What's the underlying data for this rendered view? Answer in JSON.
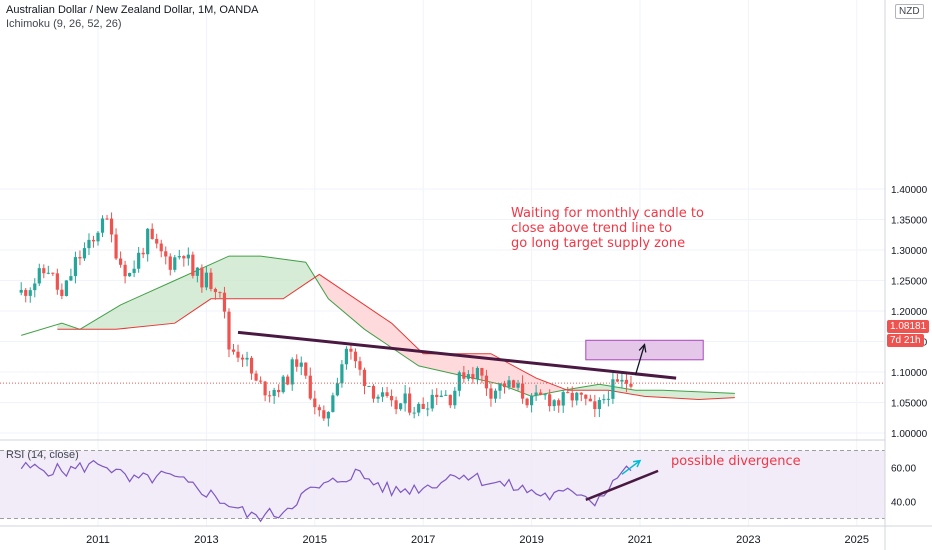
{
  "header": {
    "title": "Australian Dollar / New Zealand Dollar, 1M, OANDA",
    "indicator": "Ichimoku (9, 26, 52, 26)",
    "currency": "NZD"
  },
  "price_axis": {
    "ticks": [
      "1.40000",
      "1.35000",
      "1.30000",
      "1.25000",
      "1.20000",
      "1.15000",
      "1.10000",
      "1.05000",
      "1.00000"
    ],
    "last_price": "1.08181",
    "countdown": "7d 21h"
  },
  "rsi_panel": {
    "title": "RSI (14, close)",
    "ticks": [
      "60.00",
      "40.00"
    ]
  },
  "time_axis": {
    "labels": [
      "2011",
      "2013",
      "2015",
      "2017",
      "2019",
      "2021",
      "2023",
      "2025"
    ]
  },
  "annotations": {
    "main_note_lines": [
      "Waiting for monthly candle to",
      "close above trend line to",
      "go long target supply zone"
    ],
    "rsi_note": "possible divergence"
  },
  "colors": {
    "up_candle": "#26a69a",
    "down_candle": "#ef5350",
    "cloud_bull": "#c8e6c9",
    "cloud_bear": "#ffcdd2",
    "trendline": "#4a1942",
    "supply_zone": "#e1bee7",
    "rsi_line": "#7e57c2",
    "note_text": "#f23645"
  },
  "chart_data": [
    {
      "type": "candlestick",
      "title": "Australian Dollar / New Zealand Dollar, 1M, OANDA",
      "x_range": [
        "2009-07",
        "2025-06"
      ],
      "ylim": [
        0.96,
        1.42
      ],
      "grid": true,
      "anchor_points": [
        {
          "date": "2009-08",
          "close": 1.23
        },
        {
          "date": "2010-02",
          "close": 1.27
        },
        {
          "date": "2010-05",
          "close": 1.22
        },
        {
          "date": "2010-08",
          "close": 1.28
        },
        {
          "date": "2010-10",
          "close": 1.3
        },
        {
          "date": "2010-12",
          "close": 1.31
        },
        {
          "date": "2011-02",
          "close": 1.36
        },
        {
          "date": "2011-04",
          "close": 1.32
        },
        {
          "date": "2011-06",
          "close": 1.28
        },
        {
          "date": "2011-08",
          "close": 1.26
        },
        {
          "date": "2011-10",
          "close": 1.29
        },
        {
          "date": "2011-12",
          "close": 1.32
        },
        {
          "date": "2012-02",
          "close": 1.3
        },
        {
          "date": "2012-05",
          "close": 1.28
        },
        {
          "date": "2012-08",
          "close": 1.3
        },
        {
          "date": "2012-10",
          "close": 1.26
        },
        {
          "date": "2013-01",
          "close": 1.25
        },
        {
          "date": "2013-04",
          "close": 1.24
        },
        {
          "date": "2013-06",
          "close": 1.14
        },
        {
          "date": "2013-09",
          "close": 1.13
        },
        {
          "date": "2013-12",
          "close": 1.08
        },
        {
          "date": "2014-03",
          "close": 1.07
        },
        {
          "date": "2014-06",
          "close": 1.08
        },
        {
          "date": "2014-09",
          "close": 1.12
        },
        {
          "date": "2014-12",
          "close": 1.07
        },
        {
          "date": "2015-03",
          "close": 1.01
        },
        {
          "date": "2015-05",
          "close": 1.07
        },
        {
          "date": "2015-08",
          "close": 1.14
        },
        {
          "date": "2015-11",
          "close": 1.1
        },
        {
          "date": "2016-02",
          "close": 1.07
        },
        {
          "date": "2016-06",
          "close": 1.04
        },
        {
          "date": "2016-09",
          "close": 1.05
        },
        {
          "date": "2016-12",
          "close": 1.04
        },
        {
          "date": "2017-04",
          "close": 1.07
        },
        {
          "date": "2017-07",
          "close": 1.06
        },
        {
          "date": "2017-10",
          "close": 1.1
        },
        {
          "date": "2018-01",
          "close": 1.1
        },
        {
          "date": "2018-04",
          "close": 1.07
        },
        {
          "date": "2018-07",
          "close": 1.08
        },
        {
          "date": "2018-10",
          "close": 1.07
        },
        {
          "date": "2019-01",
          "close": 1.05
        },
        {
          "date": "2019-04",
          "close": 1.06
        },
        {
          "date": "2019-07",
          "close": 1.05
        },
        {
          "date": "2019-10",
          "close": 1.06
        },
        {
          "date": "2020-01",
          "close": 1.05
        },
        {
          "date": "2020-03",
          "close": 1.03
        },
        {
          "date": "2020-06",
          "close": 1.07
        },
        {
          "date": "2020-09",
          "close": 1.08
        },
        {
          "date": "2020-11",
          "close": 1.09
        }
      ],
      "cloud_span_a": [
        {
          "date": "2009-08",
          "value": 1.16
        },
        {
          "date": "2010-05",
          "value": 1.18
        },
        {
          "date": "2010-09",
          "value": 1.17
        },
        {
          "date": "2011-06",
          "value": 1.21
        },
        {
          "date": "2012-06",
          "value": 1.25
        },
        {
          "date": "2013-06",
          "value": 1.29
        },
        {
          "date": "2014-01",
          "value": 1.29
        },
        {
          "date": "2014-11",
          "value": 1.28
        },
        {
          "date": "2015-04",
          "value": 1.22
        },
        {
          "date": "2015-12",
          "value": 1.17
        },
        {
          "date": "2016-12",
          "value": 1.11
        },
        {
          "date": "2017-12",
          "value": 1.09
        },
        {
          "date": "2018-06",
          "value": 1.08
        },
        {
          "date": "2019-01",
          "value": 1.06
        },
        {
          "date": "2019-08",
          "value": 1.07
        },
        {
          "date": "2020-04",
          "value": 1.08
        },
        {
          "date": "2020-12",
          "value": 1.07
        },
        {
          "date": "2021-06",
          "value": 1.07
        },
        {
          "date": "2022-10",
          "value": 1.065
        }
      ],
      "cloud_span_b": [
        {
          "date": "2010-04",
          "value": 1.17
        },
        {
          "date": "2011-05",
          "value": 1.17
        },
        {
          "date": "2012-06",
          "value": 1.18
        },
        {
          "date": "2013-02",
          "value": 1.22
        },
        {
          "date": "2014-06",
          "value": 1.22
        },
        {
          "date": "2015-02",
          "value": 1.26
        },
        {
          "date": "2015-10",
          "value": 1.22
        },
        {
          "date": "2016-06",
          "value": 1.18
        },
        {
          "date": "2017-01",
          "value": 1.13
        },
        {
          "date": "2018-04",
          "value": 1.13
        },
        {
          "date": "2019-02",
          "value": 1.09
        },
        {
          "date": "2019-09",
          "value": 1.07
        },
        {
          "date": "2020-06",
          "value": 1.07
        },
        {
          "date": "2021-02",
          "value": 1.06
        },
        {
          "date": "2022-02",
          "value": 1.055
        },
        {
          "date": "2022-10",
          "value": 1.058
        }
      ],
      "trendline": [
        {
          "date": "2013-08",
          "value": 1.165
        },
        {
          "date": "2021-09",
          "value": 1.09
        }
      ],
      "supply_zone": {
        "x_start": "2020-01",
        "x_end": "2022-03",
        "y_low": 1.12,
        "y_high": 1.152
      },
      "arrow": {
        "from_date": "2020-12",
        "from_value": 1.095,
        "to_date": "2021-02",
        "to_value": 1.145
      },
      "last_price": 1.08181
    },
    {
      "type": "line",
      "title": "RSI (14, close)",
      "ylim": [
        28,
        72
      ],
      "band": [
        30,
        70
      ],
      "values_sample": [
        {
          "date": "2009-08",
          "value": 60
        },
        {
          "date": "2010-06",
          "value": 58
        },
        {
          "date": "2011-02",
          "value": 63
        },
        {
          "date": "2011-08",
          "value": 52
        },
        {
          "date": "2012-04",
          "value": 55
        },
        {
          "date": "2012-12",
          "value": 47
        },
        {
          "date": "2013-07",
          "value": 37
        },
        {
          "date": "2013-11",
          "value": 31
        },
        {
          "date": "2014-05",
          "value": 33
        },
        {
          "date": "2014-11",
          "value": 45
        },
        {
          "date": "2015-04",
          "value": 50
        },
        {
          "date": "2015-10",
          "value": 57
        },
        {
          "date": "2016-06",
          "value": 46
        },
        {
          "date": "2017-02",
          "value": 49
        },
        {
          "date": "2017-09",
          "value": 57
        },
        {
          "date": "2018-03",
          "value": 52
        },
        {
          "date": "2018-10",
          "value": 48
        },
        {
          "date": "2019-05",
          "value": 43
        },
        {
          "date": "2019-12",
          "value": 46
        },
        {
          "date": "2020-03",
          "value": 40
        },
        {
          "date": "2020-08",
          "value": 55
        },
        {
          "date": "2020-11",
          "value": 60
        }
      ],
      "divergence_line": [
        {
          "date": "2020-01",
          "value": 41
        },
        {
          "date": "2021-05",
          "value": 58
        }
      ],
      "divergence_arrow": {
        "from_date": "2020-09",
        "from_value": 56,
        "to_date": "2021-01",
        "to_value": 64
      }
    }
  ]
}
